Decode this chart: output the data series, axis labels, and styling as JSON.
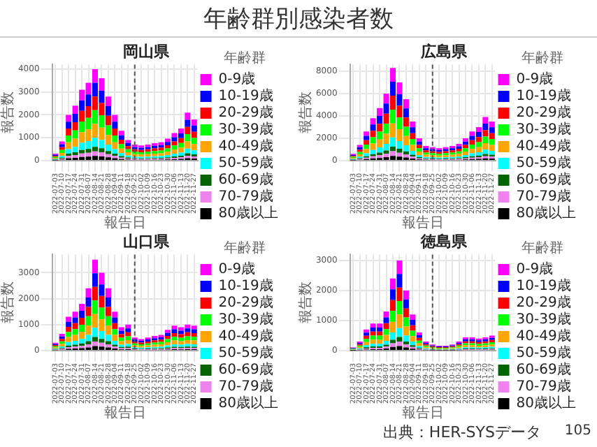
{
  "chart_data": [
    {
      "type": "bar",
      "title": "岡山県",
      "xlabel": "報告日",
      "ylabel": "報告数",
      "legend_title": "年齢群",
      "legend": "right",
      "grid": true,
      "stacked": true,
      "annotations": [
        "年齢群別感染者数",
        "出典：HER-SYSデータ",
        "105"
      ],
      "categories": [
        "2022-07-03",
        "2022-07-10",
        "2022-07-17",
        "2022-07-24",
        "2022-07-31",
        "2022-08-07",
        "2022-08-14",
        "2022-08-21",
        "2022-08-28",
        "2022-09-04",
        "2022-09-11",
        "2022-09-18",
        "2022-09-25",
        "2022-10-02",
        "2022-10-09",
        "2022-10-16",
        "2022-10-23",
        "2022-10-30",
        "2022-11-06",
        "2022-11-13",
        "2022-11-20",
        "2022-11-27"
      ],
      "ylim": [
        0,
        4200
      ],
      "yticks": [
        0,
        1000,
        2000,
        3000,
        4000
      ],
      "ref_lines": [
        {
          "axis": "x",
          "value": "2022-09-25",
          "line_style": "dashed",
          "color": "#555555"
        }
      ],
      "series": [
        {
          "name": "80歳以上",
          "color": "#000000",
          "values": [
            15,
            42,
            100,
            120,
            155,
            170,
            200,
            180,
            140,
            100,
            65,
            45,
            35,
            33,
            35,
            38,
            40,
            48,
            60,
            70,
            105,
            90
          ]
        },
        {
          "name": "70-79歳",
          "color": "#ee82ee",
          "values": [
            15,
            42,
            100,
            120,
            155,
            170,
            200,
            180,
            140,
            100,
            65,
            45,
            35,
            33,
            35,
            38,
            40,
            48,
            60,
            70,
            105,
            90
          ]
        },
        {
          "name": "60-69歳",
          "color": "#006400",
          "values": [
            15,
            42,
            100,
            120,
            155,
            170,
            200,
            180,
            140,
            100,
            65,
            45,
            35,
            33,
            35,
            38,
            40,
            48,
            60,
            70,
            105,
            90
          ]
        },
        {
          "name": "50-59歳",
          "color": "#00ffff",
          "values": [
            30,
            84,
            200,
            240,
            310,
            340,
            400,
            360,
            280,
            200,
            130,
            90,
            70,
            66,
            70,
            76,
            80,
            96,
            120,
            140,
            210,
            180
          ]
        },
        {
          "name": "40-49歳",
          "color": "#ffa500",
          "values": [
            45,
            126,
            300,
            360,
            465,
            510,
            600,
            540,
            420,
            300,
            195,
            135,
            105,
            99,
            105,
            114,
            120,
            144,
            180,
            210,
            315,
            270
          ]
        },
        {
          "name": "30-39歳",
          "color": "#00ff00",
          "values": [
            45,
            126,
            300,
            360,
            465,
            510,
            600,
            540,
            420,
            300,
            195,
            135,
            105,
            99,
            105,
            114,
            120,
            144,
            180,
            210,
            315,
            270
          ]
        },
        {
          "name": "20-29歳",
          "color": "#ff0000",
          "values": [
            45,
            126,
            300,
            360,
            465,
            510,
            600,
            540,
            420,
            300,
            195,
            135,
            105,
            99,
            105,
            114,
            120,
            144,
            180,
            210,
            315,
            270
          ]
        },
        {
          "name": "10-19歳",
          "color": "#0000ff",
          "values": [
            45,
            126,
            300,
            360,
            465,
            510,
            600,
            540,
            420,
            300,
            195,
            135,
            105,
            99,
            105,
            114,
            120,
            144,
            180,
            210,
            315,
            270
          ]
        },
        {
          "name": "0-9歳",
          "color": "#ff00ff",
          "values": [
            45,
            126,
            300,
            360,
            465,
            510,
            600,
            540,
            420,
            300,
            195,
            135,
            105,
            99,
            105,
            114,
            120,
            144,
            180,
            210,
            315,
            270
          ]
        }
      ]
    },
    {
      "type": "bar",
      "title": "広島県",
      "xlabel": "報告日",
      "ylabel": "報告数",
      "legend_title": "年齢群",
      "legend": "right",
      "grid": true,
      "stacked": true,
      "categories": [
        "2022-07-03",
        "2022-07-10",
        "2022-07-17",
        "2022-07-24",
        "2022-07-31",
        "2022-08-07",
        "2022-08-14",
        "2022-08-21",
        "2022-08-28",
        "2022-09-04",
        "2022-09-11",
        "2022-09-18",
        "2022-09-25",
        "2022-10-02",
        "2022-10-09",
        "2022-10-16",
        "2022-10-23",
        "2022-10-30",
        "2022-11-06",
        "2022-11-13",
        "2022-11-20",
        "2022-11-27"
      ],
      "ylim": [
        0,
        8600
      ],
      "yticks": [
        0,
        2000,
        4000,
        6000,
        8000
      ],
      "ref_lines": [
        {
          "axis": "x",
          "value": "2022-09-25",
          "line_style": "dashed",
          "color": "#555555"
        }
      ],
      "series": [
        {
          "name": "80歳以上",
          "color": "#000000",
          "values": [
            30,
            70,
            130,
            190,
            235,
            300,
            415,
            350,
            275,
            175,
            100,
            65,
            60,
            55,
            60,
            65,
            75,
            100,
            130,
            150,
            195,
            175
          ]
        },
        {
          "name": "70-79歳",
          "color": "#ee82ee",
          "values": [
            30,
            70,
            130,
            190,
            235,
            300,
            415,
            350,
            275,
            175,
            100,
            65,
            60,
            55,
            60,
            65,
            75,
            100,
            130,
            150,
            195,
            175
          ]
        },
        {
          "name": "60-69歳",
          "color": "#006400",
          "values": [
            30,
            70,
            130,
            190,
            235,
            300,
            415,
            350,
            275,
            175,
            100,
            65,
            60,
            55,
            60,
            65,
            75,
            100,
            130,
            150,
            195,
            175
          ]
        },
        {
          "name": "50-59歳",
          "color": "#00ffff",
          "values": [
            60,
            140,
            260,
            380,
            470,
            600,
            830,
            700,
            550,
            350,
            200,
            130,
            120,
            110,
            120,
            130,
            150,
            200,
            260,
            300,
            390,
            350
          ]
        },
        {
          "name": "40-49歳",
          "color": "#ffa500",
          "values": [
            90,
            210,
            390,
            570,
            705,
            900,
            1245,
            1050,
            825,
            525,
            300,
            195,
            180,
            165,
            180,
            195,
            225,
            300,
            390,
            450,
            585,
            525
          ]
        },
        {
          "name": "30-39歳",
          "color": "#00ff00",
          "values": [
            90,
            210,
            390,
            570,
            705,
            900,
            1245,
            1050,
            825,
            525,
            300,
            195,
            180,
            165,
            180,
            195,
            225,
            300,
            390,
            450,
            585,
            525
          ]
        },
        {
          "name": "20-29歳",
          "color": "#ff0000",
          "values": [
            90,
            210,
            390,
            570,
            705,
            900,
            1245,
            1050,
            825,
            525,
            300,
            195,
            180,
            165,
            180,
            195,
            225,
            300,
            390,
            450,
            585,
            525
          ]
        },
        {
          "name": "10-19歳",
          "color": "#0000ff",
          "values": [
            90,
            210,
            390,
            570,
            705,
            900,
            1245,
            1050,
            825,
            525,
            300,
            195,
            180,
            165,
            180,
            195,
            225,
            300,
            390,
            450,
            585,
            525
          ]
        },
        {
          "name": "0-9歳",
          "color": "#ff00ff",
          "values": [
            90,
            210,
            390,
            570,
            705,
            900,
            1245,
            1050,
            825,
            525,
            300,
            195,
            180,
            165,
            180,
            195,
            225,
            300,
            390,
            450,
            585,
            525
          ]
        }
      ]
    },
    {
      "type": "bar",
      "title": "山口県",
      "xlabel": "報告日",
      "ylabel": "報告数",
      "legend_title": "年齢群",
      "legend": "right",
      "grid": true,
      "stacked": true,
      "categories": [
        "2022-07-03",
        "2022-07-10",
        "2022-07-17",
        "2022-07-24",
        "2022-07-31",
        "2022-08-07",
        "2022-08-14",
        "2022-08-21",
        "2022-08-28",
        "2022-09-04",
        "2022-09-11",
        "2022-09-18",
        "2022-09-25",
        "2022-10-02",
        "2022-10-09",
        "2022-10-16",
        "2022-10-23",
        "2022-10-30",
        "2022-11-06",
        "2022-11-13",
        "2022-11-20",
        "2022-11-27"
      ],
      "ylim": [
        0,
        3700
      ],
      "yticks": [
        0,
        1000,
        2000,
        3000
      ],
      "ref_lines": [
        {
          "axis": "x",
          "value": "2022-09-25",
          "line_style": "dashed",
          "color": "#555555"
        }
      ],
      "series": [
        {
          "name": "80歳以上",
          "color": "#000000",
          "values": [
            15,
            32,
            65,
            75,
            90,
            120,
            175,
            150,
            120,
            75,
            45,
            50,
            25,
            22,
            25,
            28,
            30,
            40,
            48,
            45,
            50,
            48
          ]
        },
        {
          "name": "70-79歳",
          "color": "#ee82ee",
          "values": [
            15,
            32,
            65,
            75,
            90,
            120,
            175,
            150,
            120,
            75,
            45,
            50,
            25,
            22,
            25,
            28,
            30,
            40,
            48,
            45,
            50,
            48
          ]
        },
        {
          "name": "60-69歳",
          "color": "#006400",
          "values": [
            15,
            32,
            65,
            75,
            90,
            120,
            175,
            150,
            120,
            75,
            45,
            50,
            25,
            22,
            25,
            28,
            30,
            40,
            48,
            45,
            50,
            48
          ]
        },
        {
          "name": "50-59歳",
          "color": "#00ffff",
          "values": [
            30,
            64,
            130,
            150,
            180,
            240,
            350,
            300,
            240,
            150,
            90,
            100,
            50,
            44,
            50,
            56,
            60,
            80,
            96,
            90,
            100,
            96
          ]
        },
        {
          "name": "40-49歳",
          "color": "#ffa500",
          "values": [
            45,
            96,
            195,
            225,
            270,
            360,
            525,
            450,
            360,
            225,
            135,
            150,
            75,
            66,
            75,
            84,
            90,
            120,
            144,
            135,
            150,
            144
          ]
        },
        {
          "name": "30-39歳",
          "color": "#00ff00",
          "values": [
            45,
            96,
            195,
            225,
            270,
            360,
            525,
            450,
            360,
            225,
            135,
            150,
            75,
            66,
            75,
            84,
            90,
            120,
            144,
            135,
            150,
            144
          ]
        },
        {
          "name": "20-29歳",
          "color": "#ff0000",
          "values": [
            45,
            96,
            195,
            225,
            270,
            360,
            525,
            450,
            360,
            225,
            135,
            150,
            75,
            66,
            75,
            84,
            90,
            120,
            144,
            135,
            150,
            144
          ]
        },
        {
          "name": "10-19歳",
          "color": "#0000ff",
          "values": [
            45,
            96,
            195,
            225,
            270,
            360,
            525,
            450,
            360,
            225,
            135,
            150,
            75,
            66,
            75,
            84,
            90,
            120,
            144,
            135,
            150,
            144
          ]
        },
        {
          "name": "0-9歳",
          "color": "#ff00ff",
          "values": [
            45,
            96,
            195,
            225,
            270,
            360,
            525,
            450,
            360,
            225,
            135,
            150,
            75,
            66,
            75,
            84,
            90,
            120,
            144,
            135,
            150,
            144
          ]
        }
      ]
    },
    {
      "type": "bar",
      "title": "徳島県",
      "xlabel": "報告日",
      "ylabel": "報告数",
      "legend_title": "年齢群",
      "legend": "right",
      "grid": true,
      "stacked": true,
      "categories": [
        "2022-07-03",
        "2022-07-10",
        "2022-07-17",
        "2022-07-24",
        "2022-07-31",
        "2022-08-07",
        "2022-08-14",
        "2022-08-21",
        "2022-08-28",
        "2022-09-04",
        "2022-09-11",
        "2022-09-18",
        "2022-09-25",
        "2022-10-02",
        "2022-10-09",
        "2022-10-16",
        "2022-10-23",
        "2022-10-30",
        "2022-11-06",
        "2022-11-13",
        "2022-11-20",
        "2022-11-27"
      ],
      "ylim": [
        0,
        3200
      ],
      "yticks": [
        0,
        1000,
        2000,
        3000
      ],
      "ref_lines": [
        {
          "axis": "x",
          "value": "2022-09-25",
          "line_style": "dashed",
          "color": "#555555"
        }
      ],
      "series": [
        {
          "name": "80歳以上",
          "color": "#000000",
          "values": [
            5,
            15,
            35,
            45,
            45,
            65,
            120,
            150,
            100,
            60,
            30,
            15,
            10,
            8,
            8,
            10,
            15,
            22,
            22,
            20,
            22,
            25
          ]
        },
        {
          "name": "70-79歳",
          "color": "#ee82ee",
          "values": [
            5,
            15,
            35,
            45,
            45,
            65,
            120,
            150,
            100,
            60,
            30,
            15,
            10,
            8,
            8,
            10,
            15,
            22,
            22,
            20,
            22,
            25
          ]
        },
        {
          "name": "60-69歳",
          "color": "#006400",
          "values": [
            5,
            15,
            35,
            45,
            45,
            65,
            120,
            150,
            100,
            60,
            30,
            15,
            10,
            8,
            8,
            10,
            15,
            22,
            22,
            20,
            22,
            25
          ]
        },
        {
          "name": "50-59歳",
          "color": "#00ffff",
          "values": [
            10,
            30,
            70,
            90,
            90,
            130,
            240,
            300,
            200,
            120,
            60,
            30,
            20,
            16,
            16,
            20,
            30,
            44,
            44,
            40,
            44,
            50
          ]
        },
        {
          "name": "40-49歳",
          "color": "#ffa500",
          "values": [
            15,
            45,
            105,
            135,
            135,
            195,
            360,
            450,
            300,
            180,
            90,
            45,
            30,
            24,
            24,
            30,
            45,
            66,
            66,
            60,
            66,
            75
          ]
        },
        {
          "name": "30-39歳",
          "color": "#00ff00",
          "values": [
            15,
            45,
            105,
            135,
            135,
            195,
            360,
            450,
            300,
            180,
            90,
            45,
            30,
            24,
            24,
            30,
            45,
            66,
            66,
            60,
            66,
            75
          ]
        },
        {
          "name": "20-29歳",
          "color": "#ff0000",
          "values": [
            15,
            45,
            105,
            135,
            135,
            195,
            360,
            450,
            300,
            180,
            90,
            45,
            30,
            24,
            24,
            30,
            45,
            66,
            66,
            60,
            66,
            75
          ]
        },
        {
          "name": "10-19歳",
          "color": "#0000ff",
          "values": [
            15,
            45,
            105,
            135,
            135,
            195,
            360,
            450,
            300,
            180,
            90,
            45,
            30,
            24,
            24,
            30,
            45,
            66,
            66,
            60,
            66,
            75
          ]
        },
        {
          "name": "0-9歳",
          "color": "#ff00ff",
          "values": [
            15,
            45,
            105,
            135,
            135,
            195,
            360,
            450,
            300,
            180,
            90,
            45,
            30,
            24,
            24,
            30,
            45,
            66,
            66,
            60,
            66,
            75
          ]
        }
      ]
    }
  ]
}
